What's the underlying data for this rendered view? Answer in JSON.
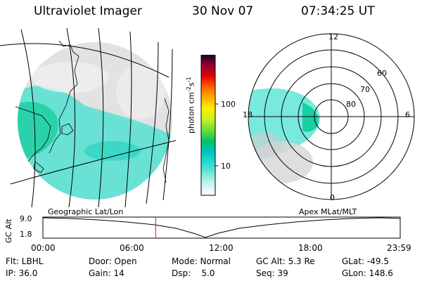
{
  "header": {
    "instrument": "Ultraviolet Imager",
    "date": "30 Nov 07",
    "time": "07:34:25 UT"
  },
  "colorbar": {
    "unit_text": "photon cm",
    "unit_exp1": "-2",
    "unit_s": "s",
    "unit_exp2": "-1",
    "tick_labels": [
      "100",
      "10"
    ],
    "colors": [
      "#ffffff",
      "#40e0d0",
      "#00c8c8",
      "#00c070",
      "#66dd33",
      "#ccee22",
      "#ffee00",
      "#ffaa00",
      "#ff5500",
      "#dd0000",
      "#aa0033",
      "#660044",
      "#220022"
    ]
  },
  "left_panel": {
    "caption": "Geographic Lat/Lon",
    "accent_color": "#40e0d0"
  },
  "polar_plot": {
    "caption": "Apex MLat/MLT",
    "mlt_labels": [
      "12",
      "18",
      "6",
      "0"
    ],
    "lat_labels": [
      "60",
      "70",
      "80"
    ]
  },
  "altitude_plot": {
    "y_label": "GC Alt",
    "y_ticks": [
      "9.0",
      "1.8"
    ],
    "x_ticks": [
      "00:00",
      "06:00",
      "12:00",
      "18:00",
      "23:59"
    ],
    "current_time_hours": 7.574,
    "marker_color": "#cc2222"
  },
  "status": {
    "filter": "Flt: LBHL",
    "door": "Door: Open",
    "mode": "Mode: Normal",
    "gc_alt": "GC Alt: 5.3 Re",
    "glat": "GLat: -49.5",
    "ip": "IP: 36.0",
    "gain": "Gain: 14",
    "dsp": "Dsp:    5.0",
    "seq": "Seq: 39",
    "glon": "GLon: 148.6"
  }
}
